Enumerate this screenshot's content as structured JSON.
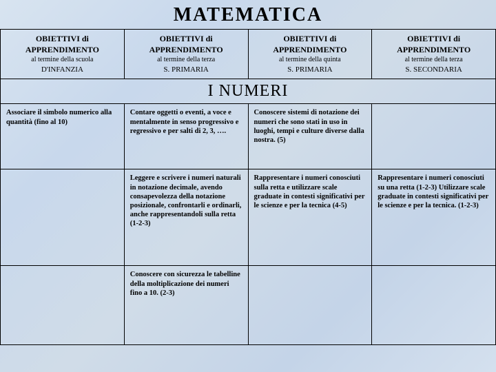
{
  "title": "MATEMATICA",
  "section": "I NUMERI",
  "headers": [
    {
      "main": "OBIETTIVI di",
      "main2": "APPRENDIMENTO",
      "sub": "al termine della scuola",
      "school": "D'INFANZIA"
    },
    {
      "main": "OBIETTIVI di",
      "main2": "APPRENDIMENTO",
      "sub": "al termine della terza",
      "school": "S. PRIMARIA"
    },
    {
      "main": "OBIETTIVI di",
      "main2": "APPRENDIMENTO",
      "sub": "al termine della quinta",
      "school": "S. PRIMARIA"
    },
    {
      "main": "OBIETTIVI di",
      "main2": "APPRENDIMENTO",
      "sub": "al termine della terza",
      "school": "S. SECONDARIA"
    }
  ],
  "rows": [
    {
      "c0": "Associare il simbolo numerico alla quantità (fino al 10)",
      "c1": "Contare oggetti o eventi, a voce e mentalmente in senso progressivo e regressivo e per salti di 2, 3, ….",
      "c2": "Conoscere sistemi di notazione dei numeri che sono stati in uso in luoghi, tempi e culture diverse dalla nostra. (5)",
      "c3": ""
    },
    {
      "c0": "",
      "c1": "Leggere e scrivere i numeri naturali in notazione decimale, avendo consapevolezza della notazione posizionale, confrontarli e ordinarli, anche rappresentandoli sulla retta (1-2-3)",
      "c2": "Rappresentare i numeri conosciuti sulla retta e utilizzare scale graduate in contesti significativi per le scienze e per  la tecnica (4-5)",
      "c3": "Rappresentare i numeri conosciuti su una retta (1-2-3) Utilizzare scale graduate in contesti significativi per le scienze e per la tecnica. (1-2-3)"
    },
    {
      "c0": "",
      "c1": "Conoscere con sicurezza le tabelline della moltiplicazione dei numeri fino a 10. (2-3)",
      "c2": "",
      "c3": ""
    }
  ]
}
